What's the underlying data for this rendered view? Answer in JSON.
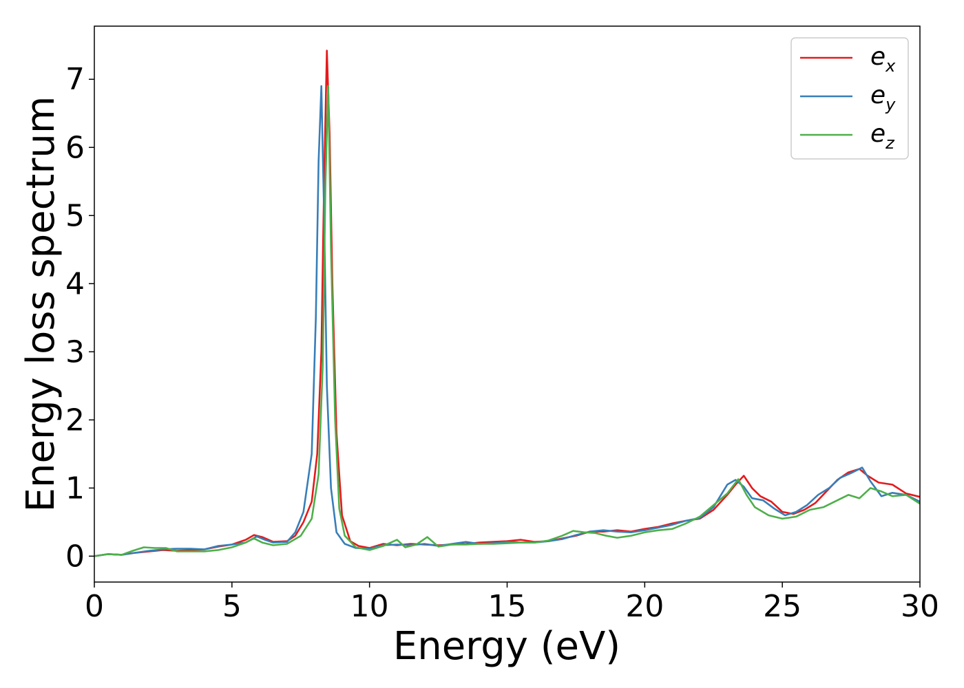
{
  "chart_data": {
    "type": "line",
    "title": "",
    "xlabel": "Energy (eV)",
    "ylabel": "Energy loss spectrum",
    "xlim": [
      0,
      30
    ],
    "ylim": [
      -0.38,
      7.78
    ],
    "xticks": [
      "0",
      "5",
      "10",
      "15",
      "20",
      "25",
      "30"
    ],
    "yticks": [
      "0",
      "1",
      "2",
      "3",
      "4",
      "5",
      "6",
      "7"
    ],
    "grid": false,
    "legend_position": "top-right",
    "series": [
      {
        "name": "e_x",
        "label_main": "e",
        "label_sub": "x",
        "color": "#e41a1c",
        "points": [
          [
            0,
            0.0
          ],
          [
            0.5,
            0.03
          ],
          [
            1.0,
            0.02
          ],
          [
            1.5,
            0.05
          ],
          [
            2.0,
            0.07
          ],
          [
            2.5,
            0.09
          ],
          [
            3.0,
            0.08
          ],
          [
            3.5,
            0.09
          ],
          [
            4.0,
            0.1
          ],
          [
            4.5,
            0.14
          ],
          [
            5.0,
            0.17
          ],
          [
            5.5,
            0.24
          ],
          [
            5.8,
            0.31
          ],
          [
            6.1,
            0.28
          ],
          [
            6.5,
            0.21
          ],
          [
            7.0,
            0.22
          ],
          [
            7.3,
            0.3
          ],
          [
            7.6,
            0.5
          ],
          [
            7.9,
            0.8
          ],
          [
            8.1,
            1.5
          ],
          [
            8.25,
            3.0
          ],
          [
            8.35,
            5.5
          ],
          [
            8.45,
            7.42
          ],
          [
            8.55,
            6.2
          ],
          [
            8.65,
            4.0
          ],
          [
            8.8,
            1.8
          ],
          [
            9.0,
            0.6
          ],
          [
            9.3,
            0.22
          ],
          [
            9.6,
            0.15
          ],
          [
            10.0,
            0.12
          ],
          [
            10.5,
            0.18
          ],
          [
            11.0,
            0.16
          ],
          [
            11.5,
            0.18
          ],
          [
            12.0,
            0.17
          ],
          [
            12.5,
            0.16
          ],
          [
            13.0,
            0.17
          ],
          [
            13.5,
            0.18
          ],
          [
            14.0,
            0.2
          ],
          [
            14.5,
            0.21
          ],
          [
            15.0,
            0.22
          ],
          [
            15.5,
            0.24
          ],
          [
            16.0,
            0.21
          ],
          [
            16.5,
            0.22
          ],
          [
            17.0,
            0.26
          ],
          [
            17.5,
            0.3
          ],
          [
            18.0,
            0.36
          ],
          [
            18.5,
            0.36
          ],
          [
            19.0,
            0.38
          ],
          [
            19.5,
            0.36
          ],
          [
            20.0,
            0.4
          ],
          [
            20.5,
            0.43
          ],
          [
            21.0,
            0.48
          ],
          [
            21.5,
            0.52
          ],
          [
            22.0,
            0.55
          ],
          [
            22.5,
            0.68
          ],
          [
            23.0,
            0.9
          ],
          [
            23.3,
            1.05
          ],
          [
            23.6,
            1.18
          ],
          [
            23.9,
            1.0
          ],
          [
            24.2,
            0.88
          ],
          [
            24.6,
            0.8
          ],
          [
            25.0,
            0.65
          ],
          [
            25.4,
            0.62
          ],
          [
            25.8,
            0.68
          ],
          [
            26.2,
            0.78
          ],
          [
            26.6,
            0.95
          ],
          [
            27.0,
            1.12
          ],
          [
            27.4,
            1.23
          ],
          [
            27.8,
            1.28
          ],
          [
            28.1,
            1.18
          ],
          [
            28.5,
            1.08
          ],
          [
            29.0,
            1.05
          ],
          [
            29.5,
            0.92
          ],
          [
            30.0,
            0.87
          ]
        ]
      },
      {
        "name": "e_y",
        "label_main": "e",
        "label_sub": "y",
        "color": "#377eb8",
        "points": [
          [
            0,
            0.0
          ],
          [
            0.5,
            0.03
          ],
          [
            1.0,
            0.02
          ],
          [
            1.5,
            0.05
          ],
          [
            2.0,
            0.08
          ],
          [
            2.5,
            0.1
          ],
          [
            3.0,
            0.11
          ],
          [
            3.5,
            0.11
          ],
          [
            4.0,
            0.1
          ],
          [
            4.5,
            0.15
          ],
          [
            5.0,
            0.17
          ],
          [
            5.5,
            0.2
          ],
          [
            5.9,
            0.29
          ],
          [
            6.2,
            0.24
          ],
          [
            6.5,
            0.2
          ],
          [
            7.0,
            0.21
          ],
          [
            7.3,
            0.35
          ],
          [
            7.6,
            0.65
          ],
          [
            7.9,
            1.5
          ],
          [
            8.05,
            3.5
          ],
          [
            8.15,
            5.8
          ],
          [
            8.25,
            6.9
          ],
          [
            8.35,
            5.0
          ],
          [
            8.45,
            2.5
          ],
          [
            8.6,
            1.0
          ],
          [
            8.8,
            0.35
          ],
          [
            9.1,
            0.18
          ],
          [
            9.5,
            0.12
          ],
          [
            10.0,
            0.11
          ],
          [
            10.5,
            0.16
          ],
          [
            11.0,
            0.17
          ],
          [
            11.5,
            0.16
          ],
          [
            12.0,
            0.18
          ],
          [
            12.5,
            0.15
          ],
          [
            13.0,
            0.18
          ],
          [
            13.5,
            0.21
          ],
          [
            14.0,
            0.18
          ],
          [
            14.5,
            0.19
          ],
          [
            15.0,
            0.21
          ],
          [
            15.5,
            0.2
          ],
          [
            16.0,
            0.2
          ],
          [
            16.5,
            0.22
          ],
          [
            17.0,
            0.25
          ],
          [
            17.5,
            0.31
          ],
          [
            18.0,
            0.36
          ],
          [
            18.5,
            0.38
          ],
          [
            19.0,
            0.36
          ],
          [
            19.5,
            0.35
          ],
          [
            20.0,
            0.38
          ],
          [
            20.5,
            0.42
          ],
          [
            21.0,
            0.46
          ],
          [
            21.5,
            0.52
          ],
          [
            22.0,
            0.56
          ],
          [
            22.5,
            0.72
          ],
          [
            23.0,
            1.05
          ],
          [
            23.3,
            1.12
          ],
          [
            23.6,
            1.02
          ],
          [
            23.9,
            0.85
          ],
          [
            24.3,
            0.82
          ],
          [
            24.7,
            0.7
          ],
          [
            25.1,
            0.6
          ],
          [
            25.5,
            0.65
          ],
          [
            25.9,
            0.75
          ],
          [
            26.3,
            0.9
          ],
          [
            26.7,
            1.0
          ],
          [
            27.1,
            1.15
          ],
          [
            27.5,
            1.22
          ],
          [
            27.9,
            1.3
          ],
          [
            28.2,
            1.1
          ],
          [
            28.6,
            0.88
          ],
          [
            29.0,
            0.93
          ],
          [
            29.5,
            0.9
          ],
          [
            30.0,
            0.8
          ]
        ]
      },
      {
        "name": "e_z",
        "label_main": "e",
        "label_sub": "z",
        "color": "#4daf4a",
        "points": [
          [
            0,
            0.0
          ],
          [
            0.5,
            0.03
          ],
          [
            1.0,
            0.02
          ],
          [
            1.4,
            0.08
          ],
          [
            1.8,
            0.13
          ],
          [
            2.2,
            0.12
          ],
          [
            2.6,
            0.12
          ],
          [
            3.0,
            0.07
          ],
          [
            3.5,
            0.07
          ],
          [
            4.0,
            0.07
          ],
          [
            4.5,
            0.09
          ],
          [
            5.0,
            0.13
          ],
          [
            5.5,
            0.2
          ],
          [
            5.8,
            0.26
          ],
          [
            6.1,
            0.2
          ],
          [
            6.5,
            0.16
          ],
          [
            7.0,
            0.18
          ],
          [
            7.5,
            0.3
          ],
          [
            7.9,
            0.55
          ],
          [
            8.15,
            1.2
          ],
          [
            8.3,
            2.8
          ],
          [
            8.4,
            5.5
          ],
          [
            8.5,
            6.9
          ],
          [
            8.6,
            4.5
          ],
          [
            8.75,
            2.0
          ],
          [
            8.9,
            0.7
          ],
          [
            9.1,
            0.3
          ],
          [
            9.5,
            0.13
          ],
          [
            10.0,
            0.09
          ],
          [
            10.5,
            0.15
          ],
          [
            11.0,
            0.24
          ],
          [
            11.3,
            0.13
          ],
          [
            11.7,
            0.17
          ],
          [
            12.1,
            0.28
          ],
          [
            12.5,
            0.14
          ],
          [
            13.0,
            0.17
          ],
          [
            13.5,
            0.17
          ],
          [
            14.0,
            0.18
          ],
          [
            14.5,
            0.18
          ],
          [
            15.0,
            0.19
          ],
          [
            15.5,
            0.2
          ],
          [
            16.0,
            0.2
          ],
          [
            16.5,
            0.23
          ],
          [
            17.0,
            0.3
          ],
          [
            17.4,
            0.37
          ],
          [
            17.8,
            0.35
          ],
          [
            18.2,
            0.34
          ],
          [
            18.6,
            0.3
          ],
          [
            19.0,
            0.27
          ],
          [
            19.5,
            0.3
          ],
          [
            20.0,
            0.35
          ],
          [
            20.5,
            0.38
          ],
          [
            21.0,
            0.4
          ],
          [
            21.5,
            0.48
          ],
          [
            22.0,
            0.58
          ],
          [
            22.5,
            0.75
          ],
          [
            23.0,
            0.92
          ],
          [
            23.4,
            1.13
          ],
          [
            23.7,
            0.9
          ],
          [
            24.0,
            0.72
          ],
          [
            24.5,
            0.6
          ],
          [
            25.0,
            0.55
          ],
          [
            25.5,
            0.58
          ],
          [
            26.0,
            0.68
          ],
          [
            26.5,
            0.72
          ],
          [
            27.0,
            0.82
          ],
          [
            27.4,
            0.9
          ],
          [
            27.8,
            0.85
          ],
          [
            28.2,
            1.0
          ],
          [
            28.6,
            0.95
          ],
          [
            29.0,
            0.88
          ],
          [
            29.5,
            0.9
          ],
          [
            30.0,
            0.77
          ]
        ]
      }
    ]
  }
}
